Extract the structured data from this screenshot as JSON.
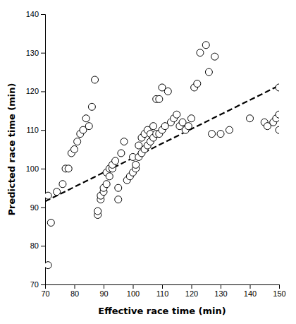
{
  "chart_data": {
    "type": "scatter",
    "xlabel": "Effective race time (min)",
    "ylabel": "Predicted race time (min)",
    "xlim": [
      70,
      150
    ],
    "ylim": [
      70,
      140
    ],
    "xticks": [
      70,
      80,
      90,
      100,
      110,
      120,
      130,
      140,
      150
    ],
    "yticks": [
      70,
      80,
      90,
      100,
      110,
      120,
      130,
      140
    ],
    "grid": false,
    "series": [
      {
        "type": "scatter",
        "marker": "circle",
        "color": "black",
        "x": [
          71,
          71,
          72,
          74,
          76,
          77,
          78,
          79,
          80,
          81,
          82,
          83,
          84,
          85,
          86,
          87,
          88,
          88,
          89,
          89,
          90,
          90,
          91,
          91,
          92,
          92,
          93,
          93,
          94,
          95,
          95,
          96,
          97,
          98,
          99,
          100,
          100,
          101,
          101,
          102,
          102,
          103,
          103,
          104,
          104,
          105,
          105,
          106,
          106,
          107,
          107,
          108,
          108,
          109,
          109,
          110,
          110,
          111,
          112,
          113,
          114,
          115,
          116,
          117,
          118,
          119,
          120,
          121,
          122,
          123,
          125,
          126,
          127,
          128,
          130,
          133,
          140,
          145,
          146,
          148,
          149,
          150,
          150,
          150
        ],
        "values": [
          75,
          93,
          86,
          94,
          96,
          100,
          100,
          104,
          105,
          107,
          109,
          110,
          113,
          111,
          116,
          123,
          88,
          89,
          92,
          93,
          94,
          95,
          96,
          99,
          98,
          100,
          100,
          101,
          102,
          92,
          95,
          104,
          107,
          97,
          98,
          99,
          103,
          100,
          101,
          103,
          106,
          104,
          108,
          105,
          109,
          106,
          110,
          107,
          109,
          108,
          111,
          109,
          118,
          109,
          118,
          110,
          121,
          111,
          120,
          112,
          113,
          114,
          111,
          112,
          110,
          111,
          113,
          121,
          122,
          130,
          132,
          125,
          109,
          129,
          109,
          110,
          113,
          112,
          111,
          112,
          113,
          114,
          110,
          121
        ]
      },
      {
        "type": "line",
        "line_style": "dashed",
        "color": "black",
        "x": [
          70,
          150
        ],
        "values": [
          91.5,
          121.5
        ]
      }
    ]
  }
}
